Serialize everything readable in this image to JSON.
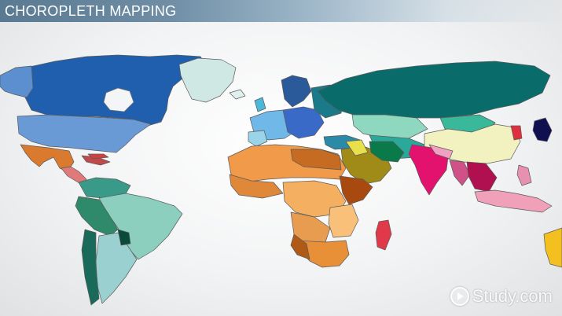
{
  "header": {
    "title": "CHOROPLETH MAPPING"
  },
  "watermark": {
    "text": "Study.com"
  },
  "colors": {
    "north_america": "#1f5fae",
    "usa": "#6a9ad6",
    "alaska": "#5b8fd0",
    "greenland": "#cfe8e4",
    "mexico": "#d97a2e",
    "central_america": "#e07a7a",
    "south_america_teal": "#4ea89c",
    "brazil": "#8ccfbf",
    "africa_orange": "#f09a4a",
    "africa_dark": "#c56b22",
    "madagascar": "#e03a4a",
    "europe_blue": "#4a7fd0",
    "russia": "#0a6c6a",
    "middle_east_olive": "#a08a18",
    "india": "#e2126e",
    "china": "#f2f2c0",
    "southeast_asia": "#f0a0b8",
    "japan": "#101050",
    "australia": "#f4c020"
  }
}
